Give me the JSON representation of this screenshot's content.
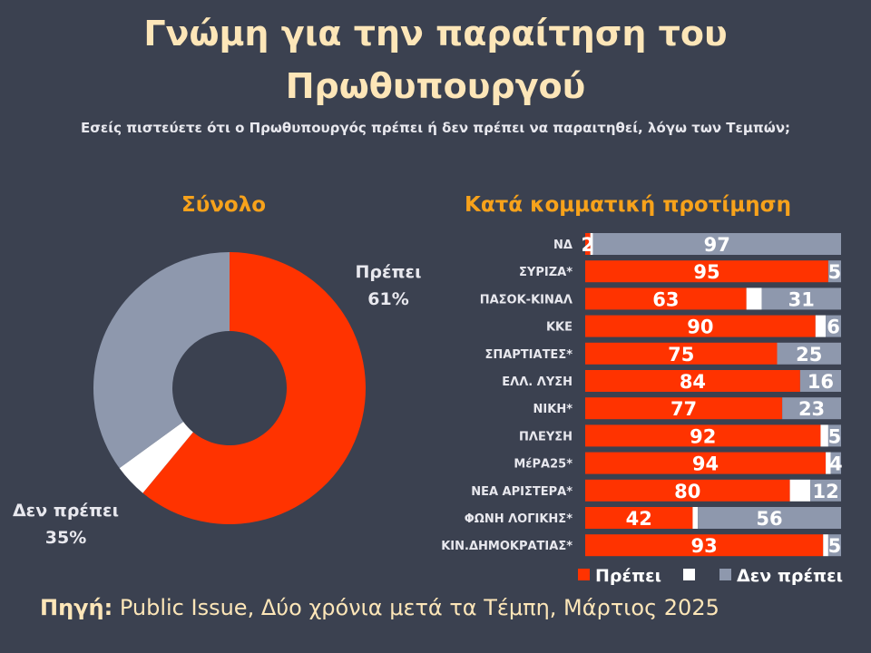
{
  "title_line1": "Γνώμη για την παραίτηση του",
  "title_line2": "Πρωθυπουργού",
  "subtitle": "Εσείς πιστεύετε ότι ο Πρωθυπουργός πρέπει ή δεν πρέπει να παραιτηθεί, λόγω των Τεμπών;",
  "source_label": "Πηγή:",
  "source_text": "Public Issue, Δύο χρόνια μετά τα Τέμπη, Μάρτιος 2025",
  "colors": {
    "yes": "#ff3300",
    "dk": "#ffffff",
    "no": "#8e98ad",
    "background": "#3b4150"
  },
  "chart_data": [
    {
      "type": "pie",
      "title": "Σύνολο",
      "slices": [
        {
          "name": "Πρέπει",
          "value": 61,
          "label": "61%"
        },
        {
          "name": "",
          "value": 4,
          "label": ""
        },
        {
          "name": "Δεν πρέπει",
          "value": 35,
          "label": "35%"
        }
      ]
    },
    {
      "type": "bar",
      "orientation": "horizontal",
      "stacked": true,
      "title": "Κατά κομματική προτίμηση",
      "categories": [
        "ΝΔ",
        "ΣΥΡΙΖΑ*",
        "ΠΑΣΟΚ-ΚΙΝΑΛ",
        "ΚΚΕ",
        "ΣΠΑΡΤΙΑΤΕΣ*",
        "ΕΛΛ. ΛΥΣΗ",
        "ΝΙΚΗ*",
        "ΠΛΕΥΣΗ",
        "ΜέΡΑ25*",
        "ΝΕΑ ΑΡΙΣΤΕΡΑ*",
        "ΦΩΝΗ ΛΟΓΙΚΗΣ*",
        "ΚΙΝ.ΔΗΜΟΚΡΑΤΙΑΣ*"
      ],
      "series": [
        {
          "name": "Πρέπει",
          "values": [
            2,
            95,
            63,
            90,
            75,
            84,
            77,
            92,
            94,
            80,
            42,
            93
          ]
        },
        {
          "name": "",
          "values": [
            1,
            0,
            6,
            4,
            0,
            0,
            0,
            3,
            2,
            8,
            2,
            2
          ]
        },
        {
          "name": "Δεν πρέπει",
          "values": [
            97,
            5,
            31,
            6,
            25,
            16,
            23,
            5,
            4,
            12,
            56,
            5
          ]
        }
      ],
      "xlim": [
        0,
        100
      ],
      "legend": "bottom-right"
    }
  ]
}
